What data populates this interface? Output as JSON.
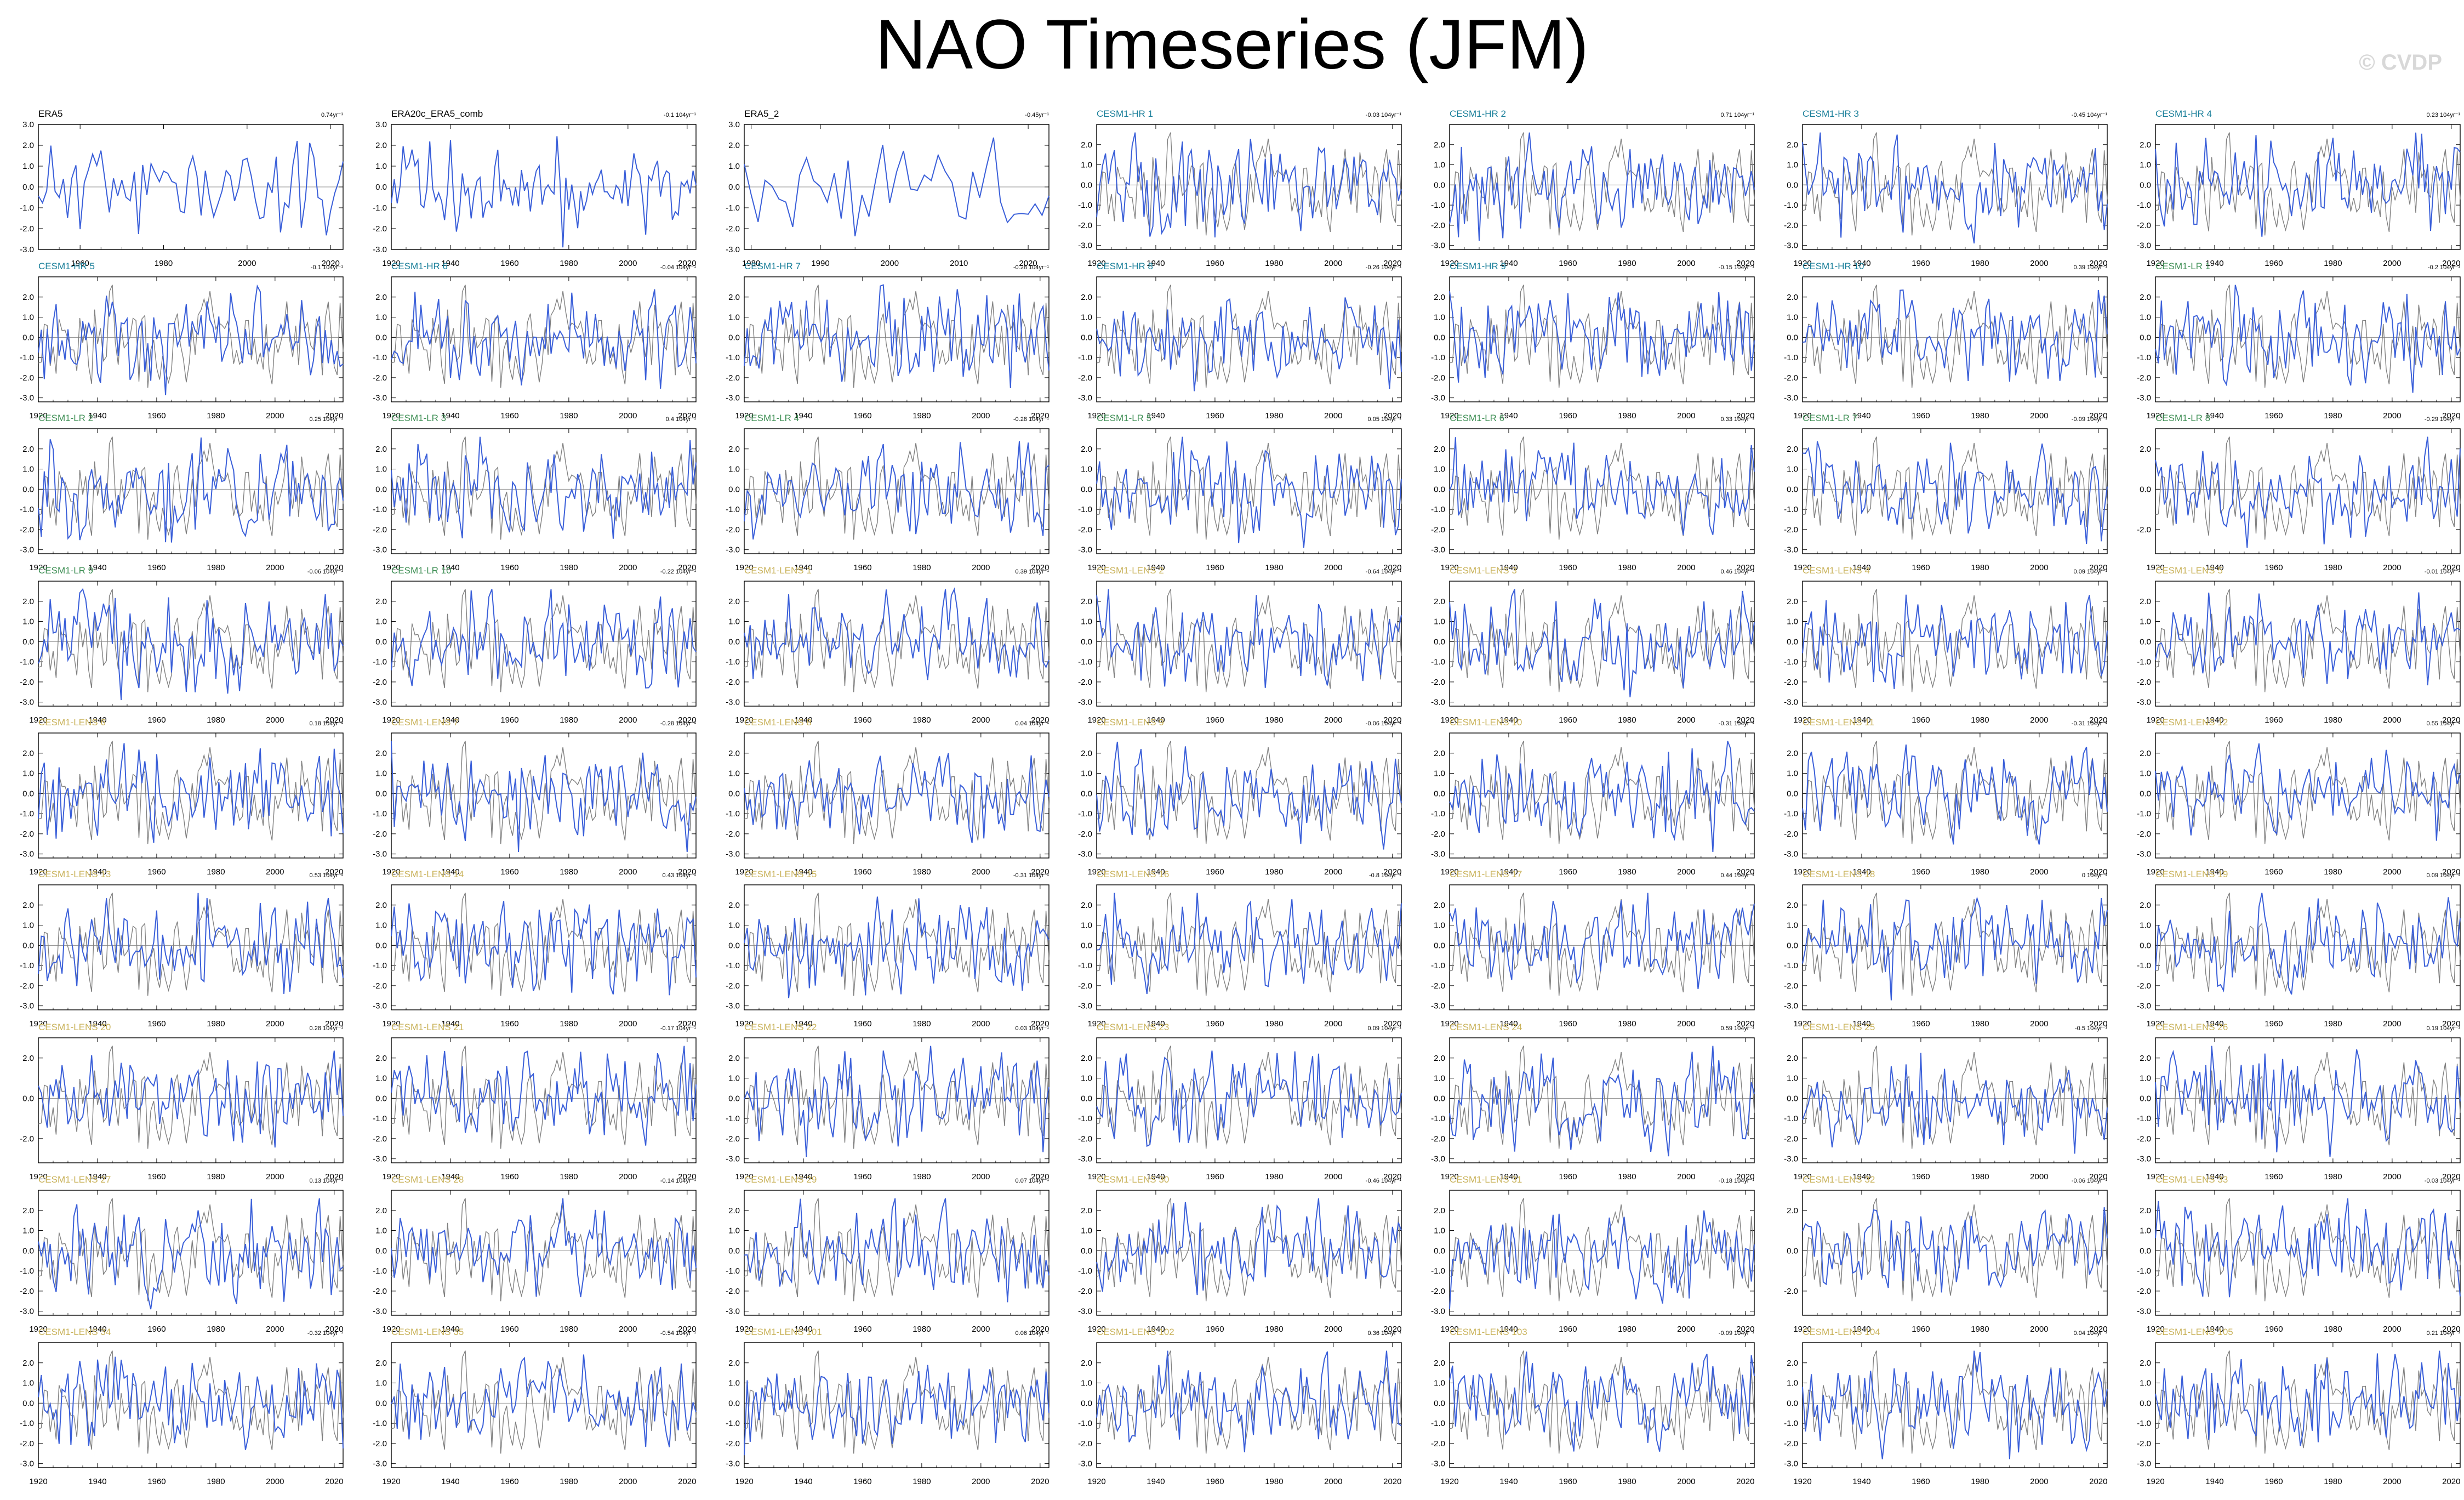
{
  "title": "NAO Timeseries (JFM)",
  "watermark": "© CVDP",
  "chart_data": {
    "type": "line",
    "description_of_series": [
      "gray: observed reference",
      "blue: dataset NAO index"
    ],
    "colors": {
      "obs": "#808080",
      "model": "#3a5fd9",
      "obs_label": "#000000",
      "hr": "#1a7f9a",
      "lr": "#3f8f55",
      "lens": "#c9b25a"
    },
    "panels": [
      {
        "name": "ERA5",
        "trend": "0.74yr⁻¹",
        "group": "obs",
        "x_start": 1950,
        "x_end": 2023,
        "xticks": [
          1960,
          1980,
          2000,
          2020
        ],
        "ylim": [
          -3,
          3
        ],
        "yticks": [
          "3.0",
          "2.0",
          "1.0",
          "0.0",
          "-1.0",
          "-2.0",
          "-3.0"
        ],
        "seed": 11
      },
      {
        "name": "ERA20c_ERA5_comb",
        "trend": "-0.1 104yr⁻¹",
        "group": "obs",
        "x_start": 1920,
        "x_end": 2023,
        "xticks": [
          1920,
          1940,
          1960,
          1980,
          2000,
          2020
        ],
        "ylim": [
          -3,
          3
        ],
        "yticks": [
          "3.0",
          "2.0",
          "1.0",
          "0.0",
          "-1.0",
          "-2.0",
          "-3.0"
        ],
        "seed": 12
      },
      {
        "name": "ERA5_2",
        "trend": "-0.45yr⁻¹",
        "group": "obs",
        "x_start": 1979,
        "x_end": 2023,
        "xticks": [
          1980,
          1990,
          2000,
          2010,
          2020
        ],
        "ylim": [
          -3,
          3
        ],
        "yticks": [
          "3.0",
          "2.0",
          "1.0",
          "0.0",
          "-1.0",
          "-2.0",
          "-3.0"
        ],
        "seed": 13
      },
      {
        "name": "CESM1-HR 1",
        "trend": "-0.03 104yr⁻¹",
        "group": "hr",
        "seed": 21
      },
      {
        "name": "CESM1-HR 2",
        "trend": "0.71 104yr⁻¹",
        "group": "hr",
        "seed": 22
      },
      {
        "name": "CESM1-HR 3",
        "trend": "-0.45 104yr⁻¹",
        "group": "hr",
        "seed": 23
      },
      {
        "name": "CESM1-HR 4",
        "trend": "0.23 104yr⁻¹",
        "group": "hr",
        "seed": 24
      },
      {
        "name": "CESM1-HR 5",
        "trend": "-0.1 104yr⁻¹",
        "group": "hr",
        "seed": 25
      },
      {
        "name": "CESM1-HR 6",
        "trend": "-0.04 104yr⁻¹",
        "group": "hr",
        "seed": 26
      },
      {
        "name": "CESM1-HR 7",
        "trend": "-0.28 104yr⁻¹",
        "group": "hr",
        "seed": 27
      },
      {
        "name": "CESM1-HR 8",
        "trend": "-0.26 104yr⁻¹",
        "group": "hr",
        "seed": 28
      },
      {
        "name": "CESM1-HR 9",
        "trend": "-0.15 104yr⁻¹",
        "group": "hr",
        "seed": 29
      },
      {
        "name": "CESM1-HR 10",
        "trend": "0.39 104yr⁻¹",
        "group": "hr",
        "seed": 30
      },
      {
        "name": "CESM1-LR 1",
        "trend": "-0.2 104yr⁻¹",
        "group": "lr",
        "seed": 31
      },
      {
        "name": "CESM1-LR 2",
        "trend": "0.25 104yr⁻¹",
        "group": "lr",
        "seed": 32
      },
      {
        "name": "CESM1-LR 3",
        "trend": "0.4 104yr⁻¹",
        "group": "lr",
        "seed": 33
      },
      {
        "name": "CESM1-LR 4",
        "trend": "-0.28 104yr⁻¹",
        "group": "lr",
        "seed": 34
      },
      {
        "name": "CESM1-LR 5",
        "trend": "0.05 104yr⁻¹",
        "group": "lr",
        "seed": 35
      },
      {
        "name": "CESM1-LR 6",
        "trend": "0.33 104yr⁻¹",
        "group": "lr",
        "seed": 36
      },
      {
        "name": "CESM1-LR 7",
        "trend": "-0.09 104yr⁻¹",
        "group": "lr",
        "seed": 37
      },
      {
        "name": "CESM1-LR 8",
        "trend": "-0.29 104yr⁻¹",
        "group": "lr",
        "yticks": [
          "2.0",
          "0.0",
          "-2.0"
        ],
        "seed": 38
      },
      {
        "name": "CESM1-LR 9",
        "trend": "-0.06 104yr⁻¹",
        "group": "lr",
        "seed": 39
      },
      {
        "name": "CESM1-LR 10",
        "trend": "-0.22 104yr⁻¹",
        "group": "lr",
        "seed": 40
      },
      {
        "name": "CESM1-LENS 1",
        "trend": "0.39 104yr⁻¹",
        "group": "lens",
        "seed": 41
      },
      {
        "name": "CESM1-LENS 2",
        "trend": "-0.64 104yr⁻¹",
        "group": "lens",
        "seed": 42
      },
      {
        "name": "CESM1-LENS 3",
        "trend": "0.46 104yr⁻¹",
        "group": "lens",
        "seed": 43
      },
      {
        "name": "CESM1-LENS 4",
        "trend": "0.09 104yr⁻¹",
        "group": "lens",
        "seed": 44
      },
      {
        "name": "CESM1-LENS 5",
        "trend": "-0.01 104yr⁻¹",
        "group": "lens",
        "seed": 45
      },
      {
        "name": "CESM1-LENS 6",
        "trend": "0.18 104yr⁻¹",
        "group": "lens",
        "seed": 46
      },
      {
        "name": "CESM1-LENS 7",
        "trend": "-0.28 104yr⁻¹",
        "group": "lens",
        "seed": 47
      },
      {
        "name": "CESM1-LENS 8",
        "trend": "0.04 104yr⁻¹",
        "group": "lens",
        "seed": 48
      },
      {
        "name": "CESM1-LENS 9",
        "trend": "-0.06 104yr⁻¹",
        "group": "lens",
        "seed": 49
      },
      {
        "name": "CESM1-LENS 10",
        "trend": "-0.31 104yr⁻¹",
        "group": "lens",
        "seed": 50
      },
      {
        "name": "CESM1-LENS 11",
        "trend": "-0.31 104yr⁻¹",
        "group": "lens",
        "seed": 51
      },
      {
        "name": "CESM1-LENS 12",
        "trend": "0.55 104yr⁻¹",
        "group": "lens",
        "seed": 52
      },
      {
        "name": "CESM1-LENS 13",
        "trend": "0.53 104yr⁻¹",
        "group": "lens",
        "seed": 53
      },
      {
        "name": "CESM1-LENS 14",
        "trend": "0.43 104yr⁻¹",
        "group": "lens",
        "seed": 54
      },
      {
        "name": "CESM1-LENS 15",
        "trend": "-0.31 104yr⁻¹",
        "group": "lens",
        "seed": 55
      },
      {
        "name": "CESM1-LENS 16",
        "trend": "-0.8 104yr⁻¹",
        "group": "lens",
        "seed": 56
      },
      {
        "name": "CESM1-LENS 17",
        "trend": "0.44 104yr⁻¹",
        "group": "lens",
        "seed": 57
      },
      {
        "name": "CESM1-LENS 18",
        "trend": "0 104yr⁻¹",
        "group": "lens",
        "seed": 58
      },
      {
        "name": "CESM1-LENS 19",
        "trend": "0.09 104yr⁻¹",
        "group": "lens",
        "seed": 59
      },
      {
        "name": "CESM1-LENS 20",
        "trend": "0.28 104yr⁻¹",
        "group": "lens",
        "yticks": [
          "2.0",
          "0.0",
          "-2.0"
        ],
        "seed": 60
      },
      {
        "name": "CESM1-LENS 21",
        "trend": "-0.17 104yr⁻¹",
        "group": "lens",
        "seed": 61
      },
      {
        "name": "CESM1-LENS 22",
        "trend": "0.03 104yr⁻¹",
        "group": "lens",
        "seed": 62
      },
      {
        "name": "CESM1-LENS 23",
        "trend": "0.09 104yr⁻¹",
        "group": "lens",
        "seed": 63
      },
      {
        "name": "CESM1-LENS 24",
        "trend": "0.59 104yr⁻¹",
        "group": "lens",
        "seed": 64
      },
      {
        "name": "CESM1-LENS 25",
        "trend": "-0.5 104yr⁻¹",
        "group": "lens",
        "seed": 65
      },
      {
        "name": "CESM1-LENS 26",
        "trend": "0.19 104yr⁻¹",
        "group": "lens",
        "seed": 66
      },
      {
        "name": "CESM1-LENS 27",
        "trend": "0.13 104yr⁻¹",
        "group": "lens",
        "seed": 67
      },
      {
        "name": "CESM1-LENS 28",
        "trend": "-0.14 104yr⁻¹",
        "group": "lens",
        "seed": 68
      },
      {
        "name": "CESM1-LENS 29",
        "trend": "0.07 104yr⁻¹",
        "group": "lens",
        "seed": 69
      },
      {
        "name": "CESM1-LENS 30",
        "trend": "-0.46 104yr⁻¹",
        "group": "lens",
        "seed": 70
      },
      {
        "name": "CESM1-LENS 31",
        "trend": "-0.18 104yr⁻¹",
        "group": "lens",
        "seed": 71
      },
      {
        "name": "CESM1-LENS 32",
        "trend": "-0.06 104yr⁻¹",
        "group": "lens",
        "yticks": [
          "2.0",
          "0.0",
          "-2.0"
        ],
        "seed": 72
      },
      {
        "name": "CESM1-LENS 33",
        "trend": "-0.03 104yr⁻¹",
        "group": "lens",
        "seed": 73
      },
      {
        "name": "CESM1-LENS 34",
        "trend": "-0.32 104yr⁻¹",
        "group": "lens",
        "seed": 74
      },
      {
        "name": "CESM1-LENS 35",
        "trend": "-0.54 104yr⁻¹",
        "group": "lens",
        "seed": 75
      },
      {
        "name": "CESM1-LENS 101",
        "trend": "0.06 104yr⁻¹",
        "group": "lens",
        "seed": 76
      },
      {
        "name": "CESM1-LENS 102",
        "trend": "0.36 104yr⁻¹",
        "group": "lens",
        "seed": 77
      },
      {
        "name": "CESM1-LENS 103",
        "trend": "-0.09 104yr⁻¹",
        "group": "lens",
        "seed": 78
      },
      {
        "name": "CESM1-LENS 104",
        "trend": "0.04 104yr⁻¹",
        "group": "lens",
        "seed": 79
      },
      {
        "name": "CESM1-LENS 105",
        "trend": "0.21 104yr⁻¹",
        "group": "lens",
        "seed": 80
      }
    ],
    "defaults": {
      "x_start": 1920,
      "x_end": 2023,
      "xticks": [
        1920,
        1940,
        1960,
        1980,
        2000,
        2020
      ],
      "ylim": [
        -3.2,
        3.0
      ],
      "yticks": [
        "2.0",
        "1.0",
        "0.0",
        "-1.0",
        "-2.0",
        "-3.0"
      ]
    }
  }
}
